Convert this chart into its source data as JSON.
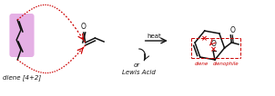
{
  "bg_color": "#ffffff",
  "diene_color": "#d070d0",
  "arrow_color": "#cc0000",
  "text_color": "#111111",
  "red_text_color": "#cc0000",
  "structure_color": "#111111",
  "diene_label": "diene [4+2]",
  "heat_label": "heat",
  "or_label": "or",
  "lewis_label": "Lewis Acid",
  "diene_bracket_label": "diene",
  "dienophile_bracket_label": "dienophile"
}
